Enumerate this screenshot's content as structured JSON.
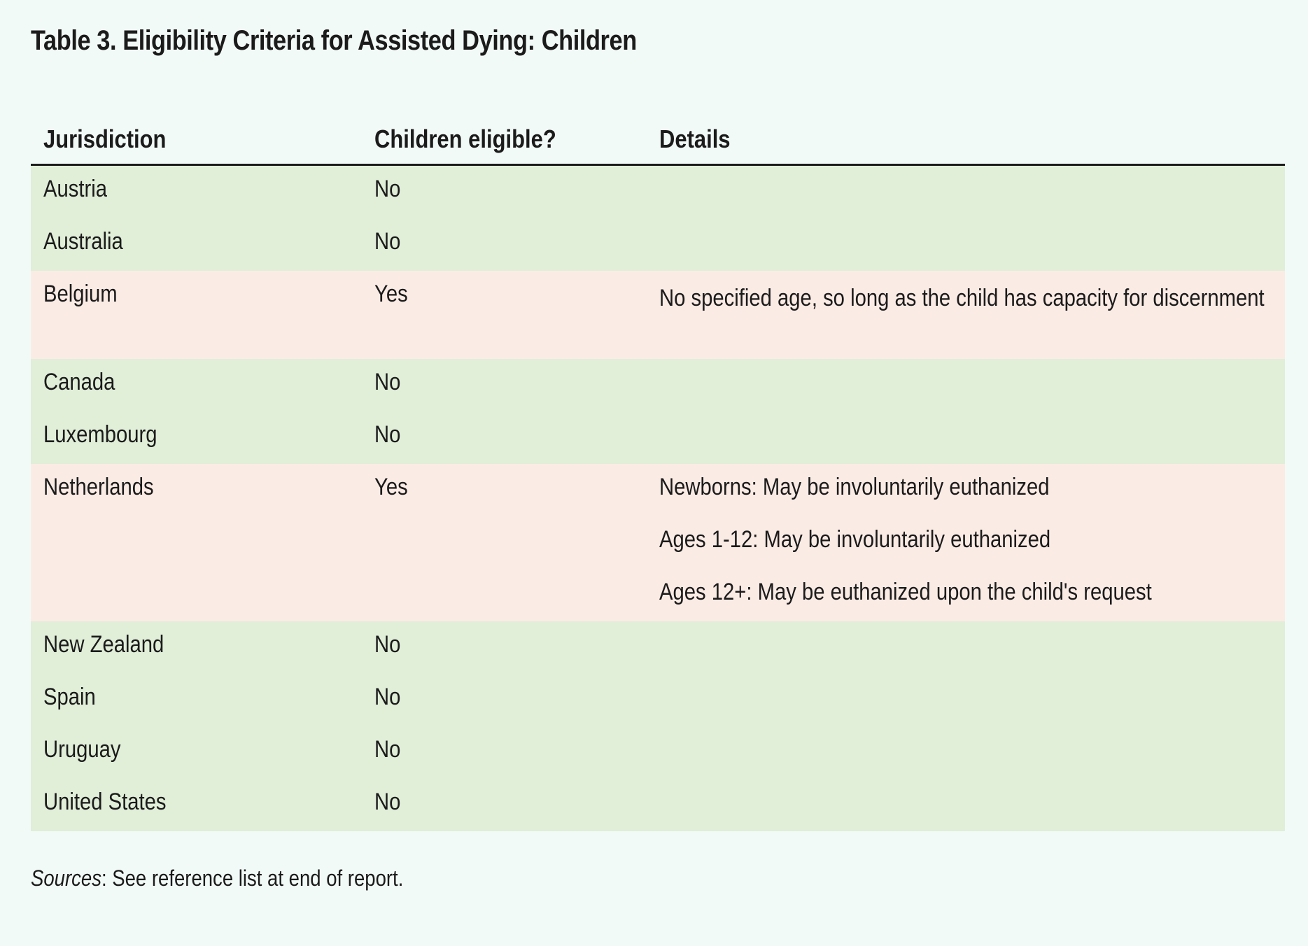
{
  "title": "Table 3. Eligibility Criteria for Assisted Dying: Children",
  "table": {
    "headers": [
      "Jurisdiction",
      "Children eligible?",
      "Details"
    ],
    "rows": [
      {
        "jurisdiction": "Austria",
        "eligible": "No",
        "details": []
      },
      {
        "jurisdiction": "Australia",
        "eligible": "No",
        "details": []
      },
      {
        "jurisdiction": "Belgium",
        "eligible": "Yes",
        "details": [
          "No specified age, so long as the child has capacity for discernment"
        ]
      },
      {
        "jurisdiction": "Canada",
        "eligible": "No",
        "details": []
      },
      {
        "jurisdiction": "Luxembourg",
        "eligible": "No",
        "details": []
      },
      {
        "jurisdiction": "Netherlands",
        "eligible": "Yes",
        "details": [
          "Newborns: May be involuntarily euthanized",
          "Ages 1-12: May be involuntarily euthanized",
          "Ages 12+: May be euthanized upon the child's request"
        ]
      },
      {
        "jurisdiction": "New Zealand",
        "eligible": "No",
        "details": []
      },
      {
        "jurisdiction": "Spain",
        "eligible": "No",
        "details": []
      },
      {
        "jurisdiction": "Uruguay",
        "eligible": "No",
        "details": []
      },
      {
        "jurisdiction": "United States",
        "eligible": "No",
        "details": []
      }
    ]
  },
  "source": {
    "label": "Sources",
    "text": ": See reference list at end of report."
  },
  "colors": {
    "background": "#f2faf8",
    "row_no": "#e1eed8",
    "row_yes": "#fbebe5",
    "text": "#1b1b1b"
  }
}
